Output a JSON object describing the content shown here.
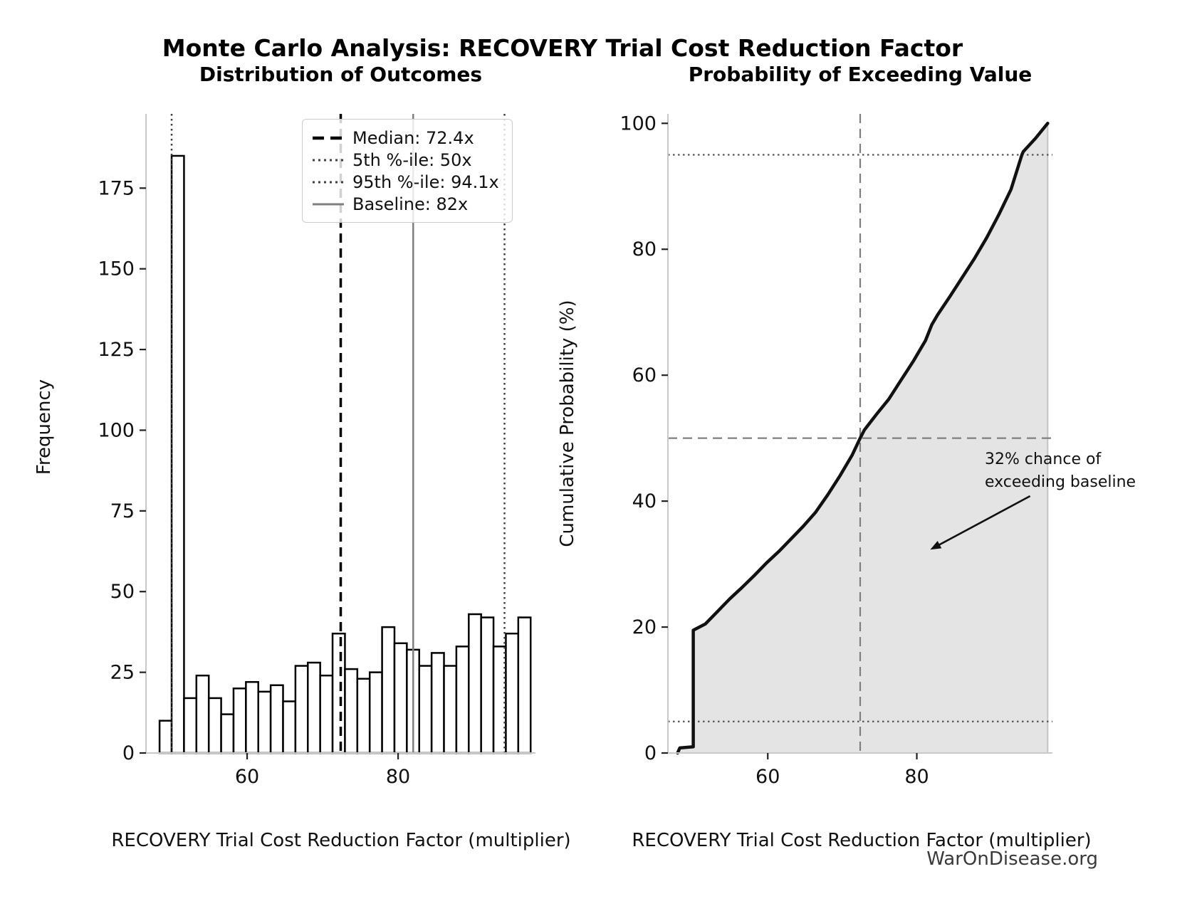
{
  "figure": {
    "title": "Monte Carlo Analysis: RECOVERY Trial Cost Reduction Factor",
    "source": "WarOnDisease.org"
  },
  "chart_data": [
    {
      "type": "bar",
      "title": "Distribution of Outcomes",
      "xlabel": "RECOVERY Trial Cost Reduction Factor (multiplier)",
      "ylabel": "Frequency",
      "bin_edges": [
        48.4,
        50.0,
        51.64,
        53.28,
        54.92,
        56.56,
        58.2,
        59.84,
        61.48,
        63.12,
        64.76,
        66.4,
        68.04,
        69.68,
        71.32,
        72.96,
        74.6,
        76.24,
        77.88,
        79.52,
        81.16,
        82.8,
        84.44,
        86.08,
        87.72,
        89.36,
        91.0,
        92.64,
        94.28,
        95.92,
        97.56
      ],
      "counts": [
        10,
        185,
        17,
        24,
        17,
        12,
        20,
        22,
        19,
        21,
        16,
        27,
        28,
        24,
        37,
        26,
        23,
        25,
        39,
        34,
        32,
        27,
        31,
        27,
        33,
        43,
        42,
        33,
        37,
        42
      ],
      "xticks": [
        60,
        80
      ],
      "yticks": [
        0,
        25,
        50,
        75,
        100,
        125,
        150,
        175
      ],
      "xlim": [
        46.6,
        98.2
      ],
      "ylim": [
        0,
        198
      ],
      "bar_fill": "#ffffff",
      "bar_edge": "#000000",
      "grid": false,
      "legend_position": "upper right",
      "vlines": [
        {
          "x": 72.4,
          "style": "dashed",
          "color": "#000000",
          "lw": 3.5,
          "label": "Median: 72.4x"
        },
        {
          "x": 50,
          "style": "dotted",
          "color": "#3f3f3f",
          "lw": 2.5,
          "label": "5th %-ile: 50x"
        },
        {
          "x": 94.1,
          "style": "dotted",
          "color": "#3f3f3f",
          "lw": 2.5,
          "label": "95th %-ile: 94.1x"
        },
        {
          "x": 82,
          "style": "solid",
          "color": "#7f7f7f",
          "lw": 2.5,
          "label": "Baseline: 82x"
        }
      ]
    },
    {
      "type": "line",
      "title": "Probability of Exceeding Value",
      "xlabel": "RECOVERY Trial Cost Reduction Factor (multiplier)",
      "ylabel": "Cumulative Probability (%)",
      "x": [
        47.9,
        48.2,
        50.0,
        50.0,
        51.64,
        53.28,
        54.92,
        56.56,
        58.2,
        59.84,
        61.48,
        63.12,
        64.76,
        66.4,
        68.04,
        69.68,
        71.32,
        72.4,
        72.96,
        74.6,
        76.24,
        77.88,
        79.52,
        81.16,
        82.0,
        82.8,
        84.44,
        86.08,
        87.72,
        89.36,
        91.0,
        92.64,
        94.1,
        94.28,
        95.92,
        97.56
      ],
      "y": [
        0,
        0.8,
        1.0,
        19.5,
        20.5,
        22.5,
        24.5,
        26.3,
        28.2,
        30.2,
        32.0,
        34.0,
        36.0,
        38.2,
        41.0,
        44.0,
        47.3,
        50.0,
        51.3,
        53.8,
        56.2,
        59.2,
        62.2,
        65.5,
        68.0,
        69.6,
        72.5,
        75.5,
        78.5,
        81.8,
        85.5,
        89.5,
        95.0,
        95.5,
        97.6,
        100.0
      ],
      "fill": true,
      "fill_color": "#e4e4e4",
      "fill_edge_color": "#c4c4c4",
      "line_color": "#111111",
      "xticks": [
        60,
        80
      ],
      "yticks": [
        0,
        20,
        40,
        60,
        80,
        100
      ],
      "xlim": [
        46.6,
        98.2
      ],
      "ylim": [
        0,
        101.5
      ],
      "grid": false,
      "hlines": [
        {
          "y": 95,
          "style": "dotted",
          "color": "#555555",
          "lw": 2.2
        },
        {
          "y": 5,
          "style": "dotted",
          "color": "#555555",
          "lw": 2.2
        },
        {
          "y": 50,
          "style": "dashed",
          "color": "#7f7f7f",
          "lw": 2.2
        }
      ],
      "vlines": [
        {
          "x": 72.4,
          "style": "dashed",
          "color": "#7f7f7f",
          "lw": 2.2
        }
      ],
      "annotation": {
        "text": "32% chance of\nexceeding baseline",
        "arrow_from": [
          95.2,
          40.8
        ],
        "arrow_to": [
          81.8,
          32.3
        ]
      }
    }
  ]
}
